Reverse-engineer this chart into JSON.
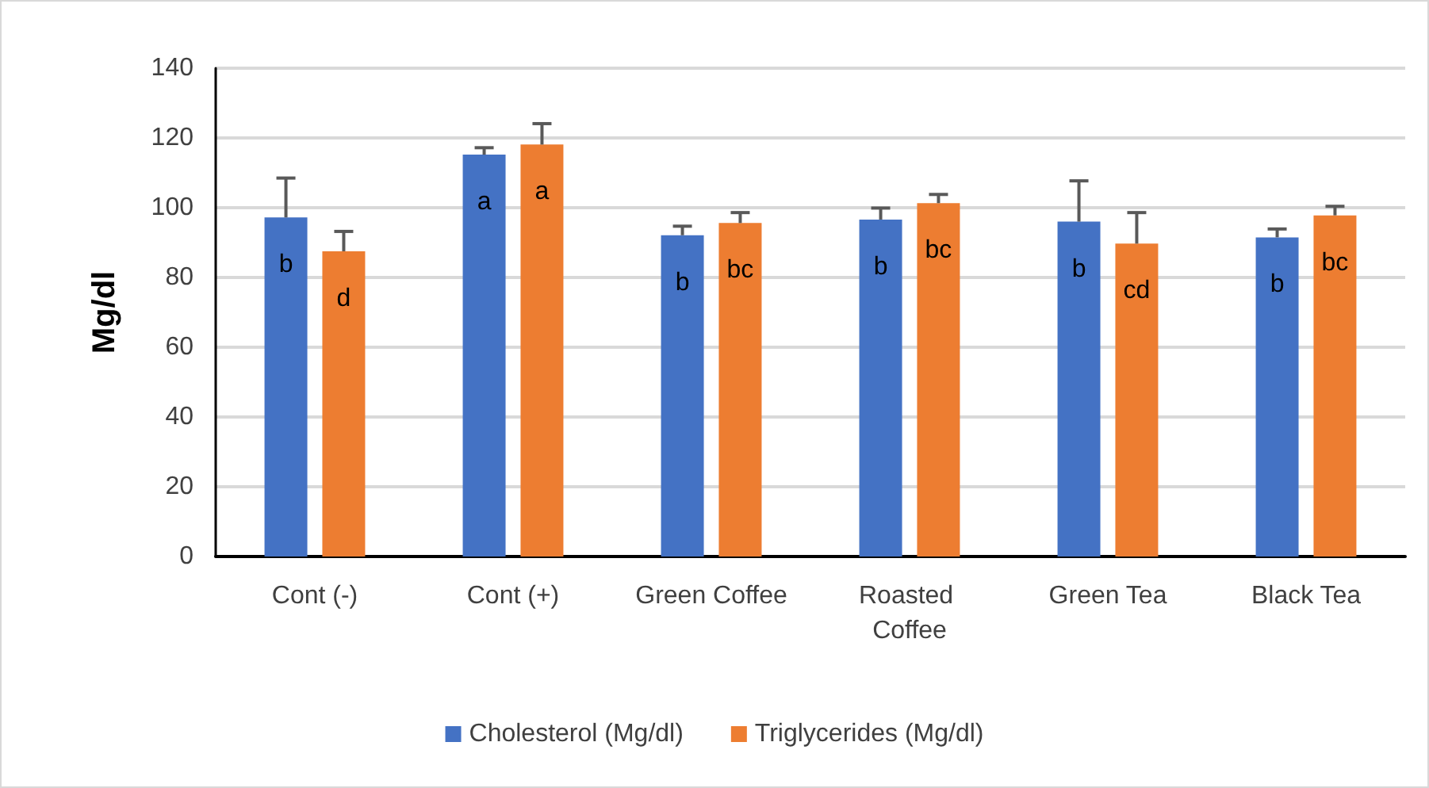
{
  "chart_data": {
    "type": "bar",
    "ylabel": "Mg/dl",
    "categories": [
      "Cont (-)",
      "Cont (+)",
      "Green Coffee",
      "Roasted Coffee",
      "Green Tea",
      "Black Tea"
    ],
    "series": [
      {
        "name": "Cholesterol (Mg/dl)",
        "color": "#4472c4",
        "values": [
          97.2,
          115.2,
          92.1,
          96.6,
          96.0,
          91.5
        ],
        "errors": [
          [
            97.2,
            108.5
          ],
          [
            115.2,
            117.2
          ],
          [
            92.1,
            94.7
          ],
          [
            96.6,
            99.9
          ],
          [
            96.0,
            107.7
          ],
          [
            91.5,
            93.9
          ]
        ],
        "value_labels": [
          "b",
          "a",
          "b",
          "b",
          "b",
          "b"
        ]
      },
      {
        "name": "Triglycerides (Mg/dl)",
        "color": "#ed7d31",
        "values": [
          87.5,
          118.1,
          95.6,
          101.3,
          89.7,
          97.8
        ],
        "errors": [
          [
            87.5,
            93.2
          ],
          [
            118.1,
            124.1
          ],
          [
            95.6,
            98.6
          ],
          [
            101.3,
            103.8
          ],
          [
            89.7,
            98.6
          ],
          [
            97.8,
            100.4
          ]
        ],
        "value_labels": [
          "d",
          "a",
          "bc",
          "bc",
          "cd",
          "bc"
        ]
      }
    ],
    "ylim": [
      0,
      140
    ],
    "yticks": [
      0,
      20,
      40,
      60,
      80,
      100,
      120,
      140
    ],
    "grid": "y",
    "legend": "bottom"
  }
}
